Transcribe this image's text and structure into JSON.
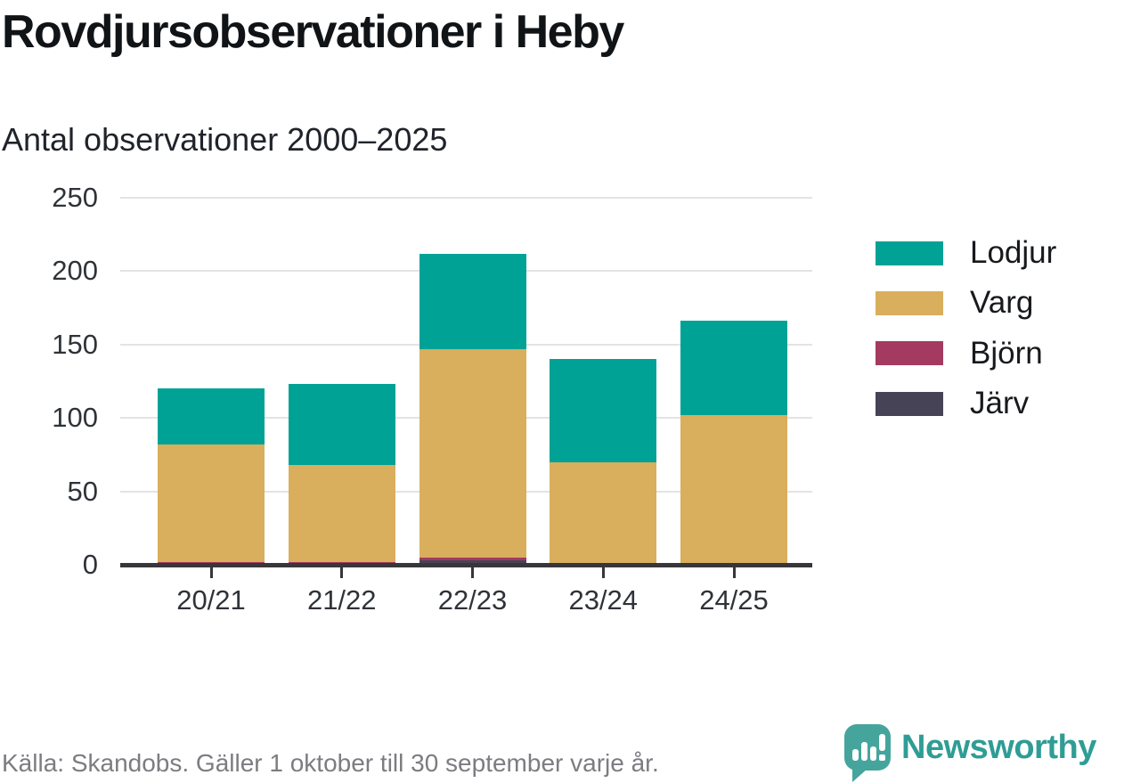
{
  "chart_data": {
    "type": "bar",
    "stacked": true,
    "title": "Rovdjursobservationer i Heby",
    "subtitle": "Antal observationer 2000–2025",
    "categories": [
      "20/21",
      "21/22",
      "22/23",
      "23/24",
      "24/25"
    ],
    "series": [
      {
        "name": "Järv",
        "color": "#474356",
        "values": [
          0,
          0,
          3,
          0,
          0
        ]
      },
      {
        "name": "Björn",
        "color": "#a43a60",
        "values": [
          2,
          2,
          2,
          0,
          0
        ]
      },
      {
        "name": "Varg",
        "color": "#d9ae5c",
        "values": [
          80,
          66,
          142,
          70,
          102
        ]
      },
      {
        "name": "Lodjur",
        "color": "#00a296",
        "values": [
          38,
          55,
          65,
          70,
          64
        ]
      }
    ],
    "totals": [
      120,
      123,
      212,
      140,
      166
    ],
    "ylim": [
      0,
      250
    ],
    "yticks": [
      0,
      50,
      100,
      150,
      200,
      250
    ],
    "grid": true,
    "legend": {
      "position": "right",
      "entries": [
        "Lodjur",
        "Varg",
        "Björn",
        "Järv"
      ]
    }
  },
  "footer": {
    "source": "Källa: Skandobs. Gäller 1 oktober till 30 september varje år.",
    "brand": "Newsworthy",
    "brand_color": "#2f9d95"
  }
}
